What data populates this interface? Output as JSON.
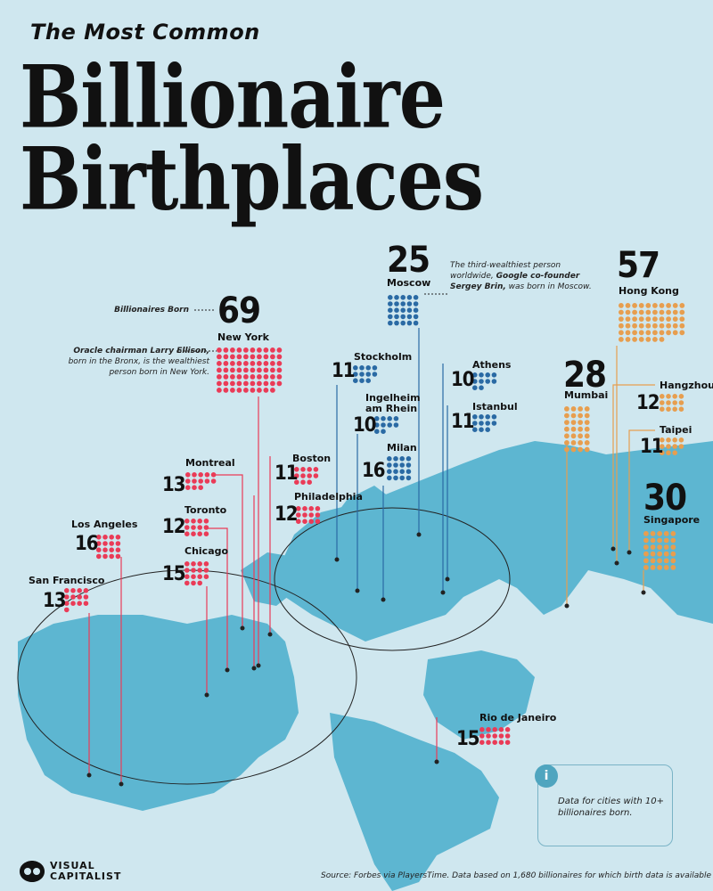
{
  "header": {
    "kicker": "The Most Common",
    "title_line1": "Billionaire",
    "title_line2": "Birthplaces"
  },
  "colors": {
    "background": "#cfe7ef",
    "land": "#5db6d1",
    "north_america": "#ea3b57",
    "europe": "#2a6aa4",
    "asia": "#e79e4f",
    "south_america": "#ea3b57"
  },
  "legend_label": "Billionaires Born",
  "cities": [
    {
      "name": "New York",
      "count": "69",
      "region": "north_america"
    },
    {
      "name": "Moscow",
      "count": "25",
      "region": "europe"
    },
    {
      "name": "Hong Kong",
      "count": "57",
      "region": "asia"
    },
    {
      "name": "Stockholm",
      "count": "11",
      "region": "europe"
    },
    {
      "name": "Athens",
      "count": "10",
      "region": "europe"
    },
    {
      "name": "Ingelheim am Rhein",
      "count": "10",
      "region": "europe"
    },
    {
      "name": "Istanbul",
      "count": "11",
      "region": "europe"
    },
    {
      "name": "Milan",
      "count": "16",
      "region": "europe"
    },
    {
      "name": "Mumbai",
      "count": "28",
      "region": "asia"
    },
    {
      "name": "Hangzhou",
      "count": "12",
      "region": "asia"
    },
    {
      "name": "Taipei",
      "count": "11",
      "region": "asia"
    },
    {
      "name": "Singapore",
      "count": "30",
      "region": "asia"
    },
    {
      "name": "Montreal",
      "count": "13",
      "region": "north_america"
    },
    {
      "name": "Boston",
      "count": "11",
      "region": "north_america"
    },
    {
      "name": "Philadelphia",
      "count": "12",
      "region": "north_america"
    },
    {
      "name": "Toronto",
      "count": "12",
      "region": "north_america"
    },
    {
      "name": "Chicago",
      "count": "15",
      "region": "north_america"
    },
    {
      "name": "Los Angeles",
      "count": "16",
      "region": "north_america"
    },
    {
      "name": "San Francisco",
      "count": "13",
      "region": "north_america"
    },
    {
      "name": "Rio de Janeiro",
      "count": "15",
      "region": "south_america"
    }
  ],
  "notes": {
    "new_york_a": "Oracle chairman Larry Ellison,",
    "new_york_b": "born in the Bronx, is the wealthiest",
    "new_york_c": "person born in New York.",
    "moscow_a": "The third-wealthiest person",
    "moscow_b1": "worldwide, ",
    "moscow_b2": "Google co-founder",
    "moscow_c1": "Sergey Brin,",
    "moscow_c2": " was born in Moscow."
  },
  "info": "Data for cities with 10+ billionaires born.",
  "brand": {
    "line1": "VISUAL",
    "line2": "CAPITALIST"
  },
  "source": "Source: Forbes via PlayersTime. Data based on 1,680 billionaires for which birth data is available"
}
